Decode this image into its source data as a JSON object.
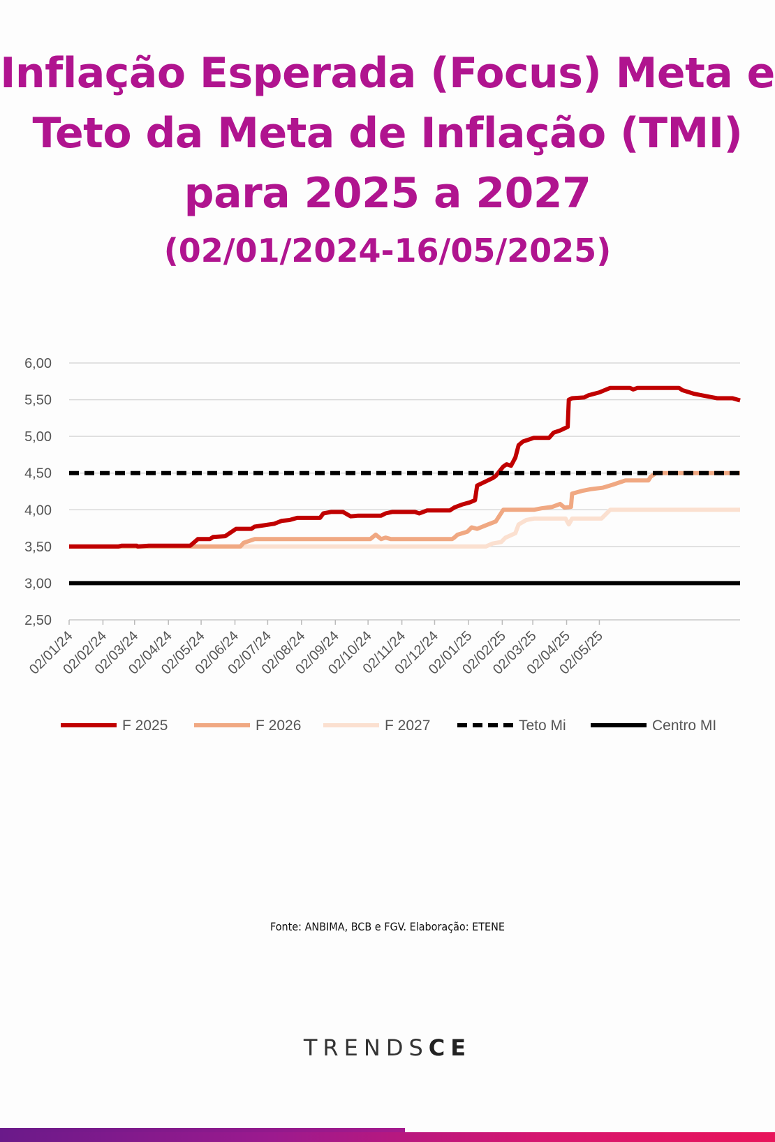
{
  "title": {
    "line1": "Inflação Esperada (Focus) Meta e",
    "line2": "Teto da Meta de Inflação (TMI)",
    "line3": "para 2025 a 2027",
    "subtitle": "(02/01/2024-16/05/2025)"
  },
  "source": "Fonte: ANBIMA, BCB e FGV. Elaboração: ETENE",
  "brand": {
    "thin": "TRENDS",
    "bold": "CE"
  },
  "colors": {
    "title": "#b0148f",
    "f2025": "#c00000",
    "f2026": "#f0a882",
    "f2027": "#fbe0d0",
    "teto": "#000000",
    "centro": "#000000"
  },
  "chart_data": {
    "type": "line",
    "x_type": "date",
    "x_ticks": [
      "02/01/24",
      "02/02/24",
      "02/03/24",
      "02/04/24",
      "02/05/24",
      "02/06/24",
      "02/07/24",
      "02/08/24",
      "02/09/24",
      "02/10/24",
      "02/11/24",
      "02/12/24",
      "02/01/25",
      "02/02/25",
      "02/03/25",
      "02/04/25",
      "02/05/25"
    ],
    "ylim": [
      2.5,
      6.0
    ],
    "y_ticks": [
      "2,50",
      "3,00",
      "3,50",
      "4,00",
      "4,50",
      "5,00",
      "5,50",
      "6,00"
    ],
    "grid": true,
    "legend_position": "bottom",
    "series": [
      {
        "name": "F 2025",
        "color": "#c00000",
        "style": "solid",
        "points": [
          [
            "2024-01-02",
            3.5
          ],
          [
            "2024-02-16",
            3.5
          ],
          [
            "2024-02-19",
            3.51
          ],
          [
            "2024-03-04",
            3.51
          ],
          [
            "2024-03-05",
            3.5
          ],
          [
            "2024-03-15",
            3.51
          ],
          [
            "2024-04-22",
            3.51
          ],
          [
            "2024-04-29",
            3.6
          ],
          [
            "2024-05-10",
            3.6
          ],
          [
            "2024-05-13",
            3.63
          ],
          [
            "2024-05-24",
            3.64
          ],
          [
            "2024-06-03",
            3.74
          ],
          [
            "2024-06-17",
            3.74
          ],
          [
            "2024-06-20",
            3.77
          ],
          [
            "2024-07-08",
            3.81
          ],
          [
            "2024-07-15",
            3.85
          ],
          [
            "2024-07-22",
            3.86
          ],
          [
            "2024-07-29",
            3.89
          ],
          [
            "2024-08-19",
            3.89
          ],
          [
            "2024-08-22",
            3.95
          ],
          [
            "2024-08-29",
            3.97
          ],
          [
            "2024-09-09",
            3.97
          ],
          [
            "2024-09-16",
            3.91
          ],
          [
            "2024-09-23",
            3.92
          ],
          [
            "2024-10-14",
            3.92
          ],
          [
            "2024-10-18",
            3.95
          ],
          [
            "2024-10-24",
            3.97
          ],
          [
            "2024-11-14",
            3.97
          ],
          [
            "2024-11-18",
            3.95
          ],
          [
            "2024-11-25",
            3.99
          ],
          [
            "2024-12-16",
            3.99
          ],
          [
            "2024-12-20",
            4.03
          ],
          [
            "2024-12-27",
            4.07
          ],
          [
            "2025-01-03",
            4.1
          ],
          [
            "2025-01-08",
            4.13
          ],
          [
            "2025-01-10",
            4.33
          ],
          [
            "2025-01-17",
            4.38
          ],
          [
            "2025-01-24",
            4.43
          ],
          [
            "2025-01-27",
            4.46
          ],
          [
            "2025-02-03",
            4.59
          ],
          [
            "2025-02-06",
            4.62
          ],
          [
            "2025-02-10",
            4.6
          ],
          [
            "2025-02-14",
            4.71
          ],
          [
            "2025-02-17",
            4.88
          ],
          [
            "2025-02-21",
            4.93
          ],
          [
            "2025-03-03",
            4.98
          ],
          [
            "2025-03-17",
            4.98
          ],
          [
            "2025-03-21",
            5.05
          ],
          [
            "2025-03-27",
            5.08
          ],
          [
            "2025-04-03",
            5.13
          ],
          [
            "2025-04-04",
            5.5
          ],
          [
            "2025-04-07",
            5.52
          ],
          [
            "2025-04-18",
            5.53
          ],
          [
            "2025-04-22",
            5.56
          ],
          [
            "2025-05-02",
            5.6
          ],
          [
            "2025-05-07",
            5.63
          ],
          [
            "2025-05-12",
            5.66
          ],
          [
            "2025-05-30",
            5.66
          ],
          [
            "2025-06-02",
            5.64
          ],
          [
            "2025-06-06",
            5.66
          ],
          [
            "2025-07-14",
            5.66
          ],
          [
            "2025-07-17",
            5.63
          ],
          [
            "2025-07-28",
            5.58
          ],
          [
            "2025-08-11",
            5.54
          ],
          [
            "2025-08-18",
            5.52
          ],
          [
            "2025-09-01",
            5.52
          ],
          [
            "2025-09-08",
            5.49
          ]
        ]
      },
      {
        "name": "F 2026",
        "color": "#f0a882",
        "style": "solid",
        "points": [
          [
            "2024-01-02",
            3.5
          ],
          [
            "2024-06-07",
            3.5
          ],
          [
            "2024-06-10",
            3.55
          ],
          [
            "2024-06-20",
            3.6
          ],
          [
            "2024-10-04",
            3.6
          ],
          [
            "2024-10-09",
            3.66
          ],
          [
            "2024-10-14",
            3.6
          ],
          [
            "2024-10-18",
            3.62
          ],
          [
            "2024-10-23",
            3.6
          ],
          [
            "2024-12-18",
            3.6
          ],
          [
            "2024-12-20",
            3.62
          ],
          [
            "2024-12-23",
            3.66
          ],
          [
            "2025-01-01",
            3.7
          ],
          [
            "2025-01-05",
            3.76
          ],
          [
            "2025-01-10",
            3.74
          ],
          [
            "2025-01-20",
            3.8
          ],
          [
            "2025-01-27",
            3.84
          ],
          [
            "2025-02-03",
            4.0
          ],
          [
            "2025-03-03",
            4.0
          ],
          [
            "2025-03-10",
            4.02
          ],
          [
            "2025-03-20",
            4.04
          ],
          [
            "2025-03-27",
            4.08
          ],
          [
            "2025-03-31",
            4.03
          ],
          [
            "2025-04-06",
            4.04
          ],
          [
            "2025-04-07",
            4.22
          ],
          [
            "2025-04-17",
            4.26
          ],
          [
            "2025-04-24",
            4.28
          ],
          [
            "2025-05-05",
            4.3
          ],
          [
            "2025-05-14",
            4.34
          ],
          [
            "2025-05-26",
            4.4
          ],
          [
            "2025-06-16",
            4.4
          ],
          [
            "2025-06-18",
            4.45
          ],
          [
            "2025-06-23",
            4.5
          ],
          [
            "2025-09-08",
            4.5
          ]
        ]
      },
      {
        "name": "F 2027",
        "color": "#fbe0d0",
        "style": "solid",
        "points": [
          [
            "2024-01-02",
            3.5
          ],
          [
            "2025-01-18",
            3.5
          ],
          [
            "2025-01-24",
            3.54
          ],
          [
            "2025-02-01",
            3.56
          ],
          [
            "2025-02-05",
            3.62
          ],
          [
            "2025-02-14",
            3.68
          ],
          [
            "2025-02-17",
            3.8
          ],
          [
            "2025-02-24",
            3.86
          ],
          [
            "2025-03-03",
            3.88
          ],
          [
            "2025-04-01",
            3.88
          ],
          [
            "2025-04-04",
            3.8
          ],
          [
            "2025-04-07",
            3.88
          ],
          [
            "2025-05-04",
            3.88
          ],
          [
            "2025-05-12",
            4.0
          ],
          [
            "2025-09-08",
            4.0
          ]
        ]
      },
      {
        "name": "Teto Mi",
        "color": "#000000",
        "style": "dashed",
        "points": [
          [
            "2024-01-02",
            4.5
          ],
          [
            "2025-09-08",
            4.5
          ]
        ]
      },
      {
        "name": "Centro MI",
        "color": "#000000",
        "style": "solid",
        "points": [
          [
            "2024-01-02",
            3.0
          ],
          [
            "2025-09-08",
            3.0
          ]
        ]
      }
    ]
  }
}
